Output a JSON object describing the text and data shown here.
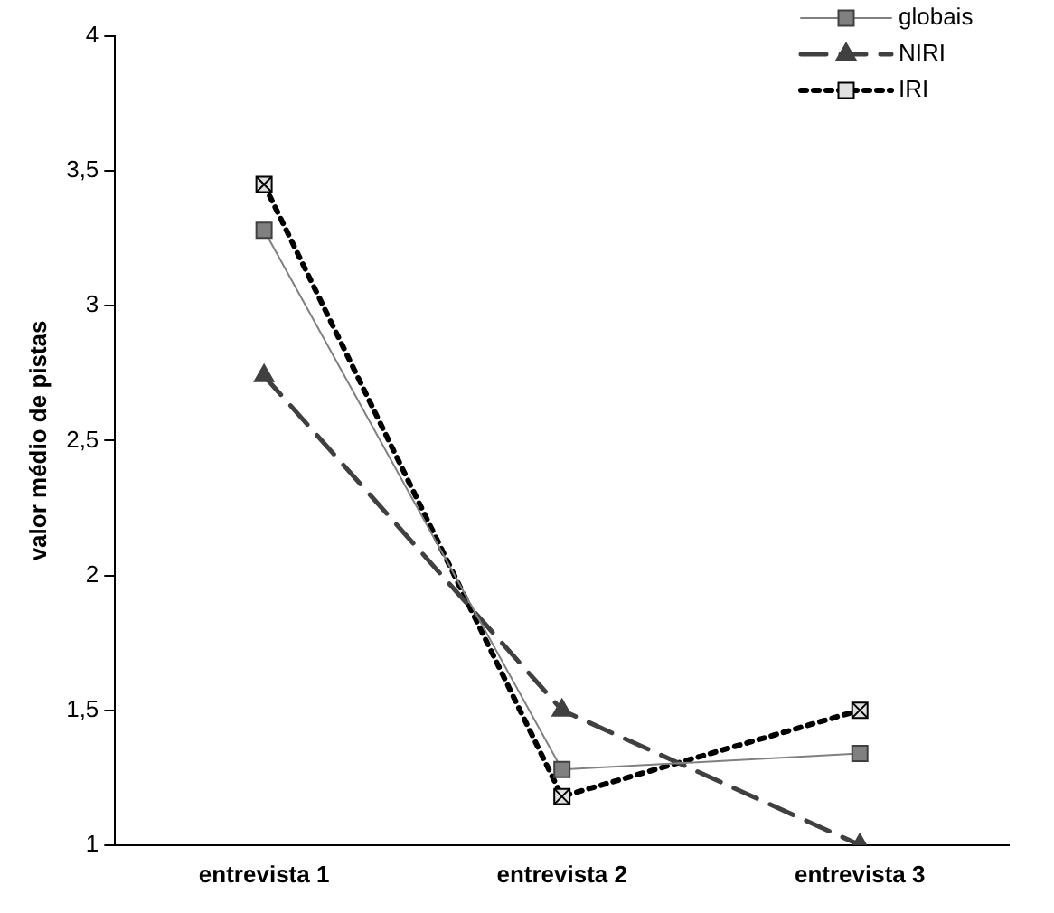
{
  "chart_data": {
    "type": "line",
    "ylabel": "valor médio de pistas",
    "categories": [
      "entrevista 1",
      "entrevista 2",
      "entrevista 3"
    ],
    "series": [
      {
        "name": "globais",
        "color": "#808080",
        "values": [
          3.28,
          1.28,
          1.34
        ],
        "marker": "square",
        "line_style": "solid"
      },
      {
        "name": "NIRI",
        "color": "#404040",
        "values": [
          2.74,
          1.5,
          1.0
        ],
        "marker": "triangle",
        "line_style": "dashed"
      },
      {
        "name": "IRI",
        "color": "#000000",
        "values": [
          3.45,
          1.18,
          1.5
        ],
        "marker": "square",
        "line_style": "dotted"
      }
    ],
    "ylim": [
      1,
      4
    ],
    "yticks": [
      1,
      {
        "value": 1.5,
        "label": "1,5"
      },
      2,
      {
        "value": 2.5,
        "label": "2,5"
      },
      3,
      {
        "value": 3.5,
        "label": "3,5"
      },
      4
    ],
    "grid": false,
    "legend": "top right"
  }
}
